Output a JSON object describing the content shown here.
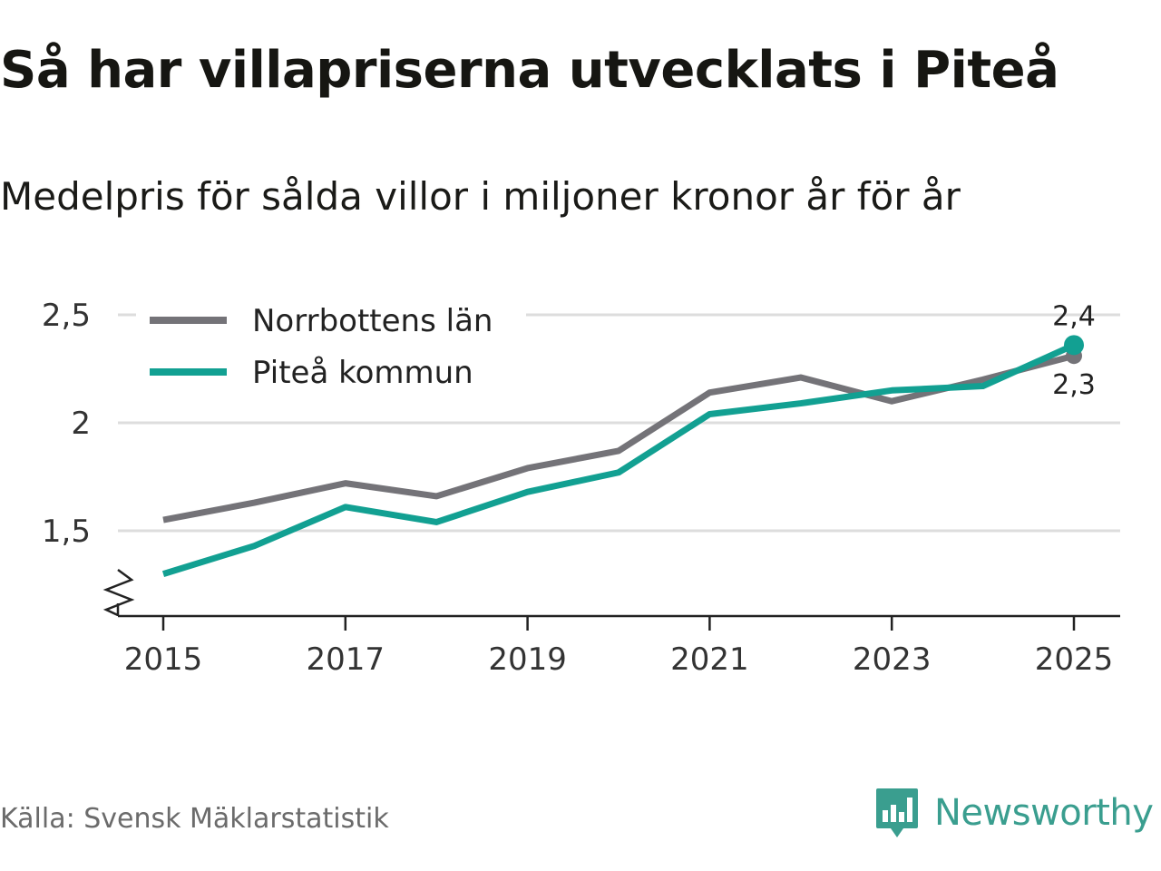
{
  "chart_data": {
    "type": "line",
    "title": "Så har villapriserna utvecklats i Piteå",
    "subtitle": "Medelpris för sålda villor i miljoner kronor år för år",
    "x": [
      2015,
      2016,
      2017,
      2018,
      2019,
      2020,
      2021,
      2022,
      2023,
      2024,
      2025
    ],
    "x_ticks": [
      "2015",
      "2017",
      "2019",
      "2021",
      "2023",
      "2025"
    ],
    "y_ticks": [
      "1,5",
      "2",
      "2,5"
    ],
    "y_tick_values": [
      1.5,
      2,
      2.5
    ],
    "ylim": [
      1.15,
      2.6
    ],
    "axis_break": true,
    "grid": "horizontal",
    "legend_position": "top-left",
    "series": [
      {
        "name": "Norrbottens län",
        "color": "#747378",
        "values": [
          1.55,
          1.63,
          1.72,
          1.66,
          1.79,
          1.87,
          2.14,
          2.21,
          2.1,
          2.2,
          2.31
        ],
        "end_label": "2,3"
      },
      {
        "name": "Piteå kommun",
        "color": "#12a092",
        "values": [
          1.3,
          1.43,
          1.61,
          1.54,
          1.68,
          1.77,
          2.04,
          2.09,
          2.15,
          2.17,
          2.36
        ],
        "end_label": "2,4"
      }
    ]
  },
  "source": "Källa: Svensk Mäklarstatistik",
  "logo": {
    "text": "Newsworthy",
    "color": "#3a9e8f"
  }
}
